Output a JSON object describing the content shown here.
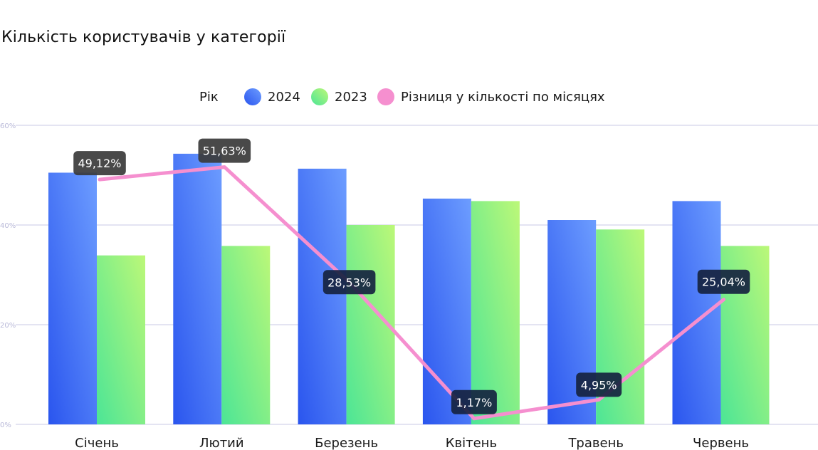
{
  "chart_data": {
    "type": "bar",
    "title": "Кількість користувачів у категорії",
    "categories": [
      "Січень",
      "Лютий",
      "Березень",
      "Квітень",
      "Травень",
      "Червень"
    ],
    "series": [
      {
        "name": "2024",
        "kind": "bar",
        "values": [
          50.5,
          54.3,
          51.3,
          45.3,
          41.0,
          44.8
        ]
      },
      {
        "name": "2023",
        "kind": "bar",
        "values": [
          33.9,
          35.8,
          40.0,
          44.8,
          39.1,
          35.8
        ]
      },
      {
        "name": "Різниця у кількості по місяцях",
        "kind": "line",
        "values": [
          49.12,
          51.63,
          28.53,
          1.17,
          4.95,
          25.04
        ],
        "labels": [
          "49,12%",
          "51,63%",
          "28,53%",
          "1,17%",
          "4,95%",
          "25,04%"
        ]
      }
    ],
    "legend": {
      "title": "Рік",
      "position": "top-center"
    },
    "yaxis": {
      "ticks": [
        0,
        20,
        40,
        60
      ],
      "tick_labels": [
        "0%",
        "20%",
        "40%",
        "60%"
      ],
      "ylim": [
        0,
        60
      ]
    },
    "grid": true,
    "colors": {
      "bar_2024": [
        "#2f5cf0",
        "#6a9bff"
      ],
      "bar_2023": [
        "#55e88f",
        "#b3f77b"
      ],
      "line": "#f58fcf",
      "callout_dark": "#162340",
      "callout_grey": "#3a3a3a",
      "grid": "#c8c8e6"
    },
    "callout_styles": [
      "grey",
      "grey",
      "dark",
      "dark",
      "dark",
      "dark"
    ]
  }
}
